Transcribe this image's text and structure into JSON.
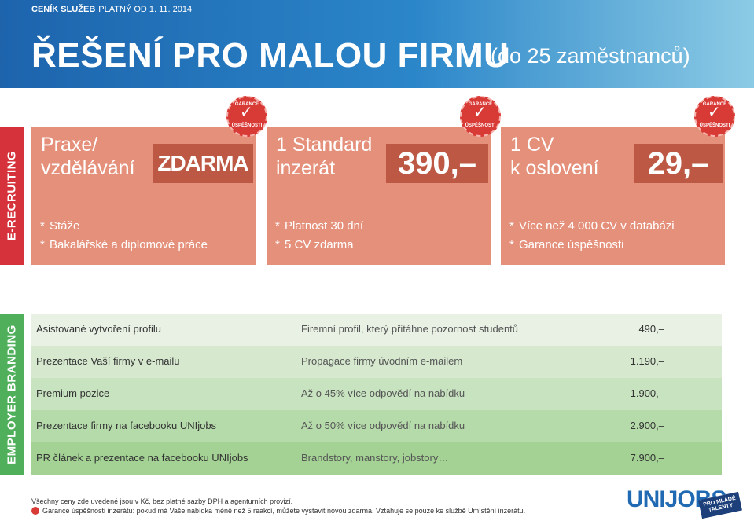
{
  "header": {
    "pricelist_bold": "CENÍK SLUŽEB",
    "pricelist_date": "PLATNÝ OD 1. 11. 2014",
    "title": "ŘEŠENÍ PRO MALOU FIRMU",
    "subtitle": "(do 25 zaměstnanců)"
  },
  "colors": {
    "header_blue": "#2b86c9",
    "recruiting_red": "#d6323b",
    "card_salmon": "#e5907a",
    "price_dark": "#bc5843",
    "branding_green": "#4faf5a",
    "row_light": "#e8f1e4",
    "row_mid": "#c8e3c0",
    "row_dark": "#a3d294"
  },
  "sections": {
    "recruiting": "E-RECRUITING",
    "branding": "EMPLOYER BRANDING"
  },
  "guarantee_badge": {
    "top": "GARANCE",
    "bottom": "ÚSPĚŠNOSTI",
    "icon": "check-icon"
  },
  "cards": [
    {
      "name": "Praxe/\nvzdělávání",
      "price": "ZDARMA",
      "bullets": [
        "Stáže",
        "Bakalářské a diplomové práce"
      ]
    },
    {
      "name": "1 Standard\ninzerát",
      "price": "390,–",
      "bullets": [
        "Platnost 30 dní",
        "5 CV zdarma"
      ]
    },
    {
      "name": "1 CV\nk oslovení",
      "price": "29,–",
      "bullets": [
        "Více než 4 000 CV v databázi",
        "Garance úspěšnosti"
      ]
    }
  ],
  "branding_rows": [
    {
      "name": "Asistované vytvoření profilu",
      "desc": "Firemní profil, který přitáhne pozornost studentů",
      "price": "490,–"
    },
    {
      "name": "Prezentace Vaší firmy v e-mailu",
      "desc": "Propagace firmy úvodním e-mailem",
      "price": "1.190,–"
    },
    {
      "name": "Premium pozice",
      "desc": "Až o 45% více odpovědí na nabídku",
      "price": "1.900,–"
    },
    {
      "name": "Prezentace firmy na facebooku UNIjobs",
      "desc": "Až o 50% více odpovědí na nabídku",
      "price": "2.900,–"
    },
    {
      "name": "PR článek a prezentace na facebooku UNIjobs",
      "desc": "Brandstory, manstory, jobstory…",
      "price": "7.900,–"
    }
  ],
  "footer": {
    "note1": "Všechny ceny zde uvedené jsou v Kč, bez platné sazby DPH a agenturních provizí.",
    "note2": "Garance úspěšnosti inzerátu: pokud má Vaše nabídka méně než 5 reakcí, můžete vystavit novou zdarma. Vztahuje se pouze ke službě Umístění inzerátu.",
    "logo": "UNIJOBS",
    "logo_badge": "PRO MLADÉ\nTALENTY"
  }
}
